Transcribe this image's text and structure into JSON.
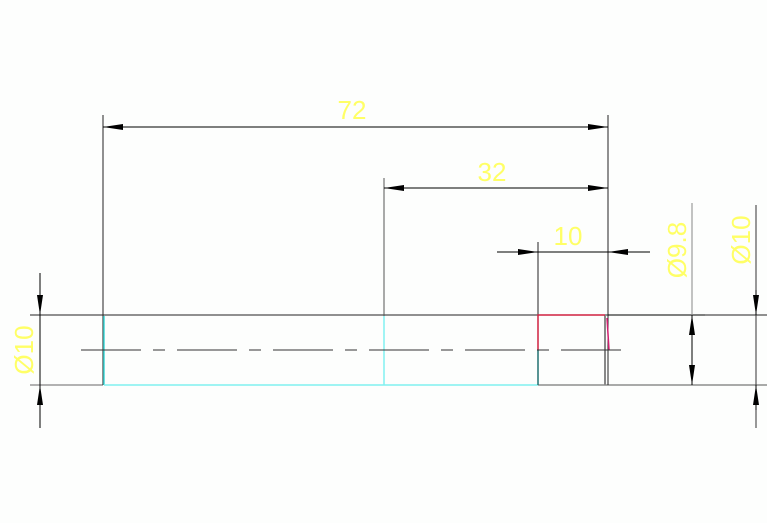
{
  "drawing": {
    "dimensions": {
      "overall_length": "72",
      "middle_length": "32",
      "end_length": "10",
      "left_diameter": "Ø10",
      "groove_diameter": "Ø9.8",
      "right_diameter": "Ø10"
    },
    "colors": {
      "background": "#fdfefd",
      "outline": "#222222",
      "dimension_text": "#ffff66",
      "hidden_edge": "#66f0f0",
      "chamfer_edge": "#d02040"
    }
  }
}
